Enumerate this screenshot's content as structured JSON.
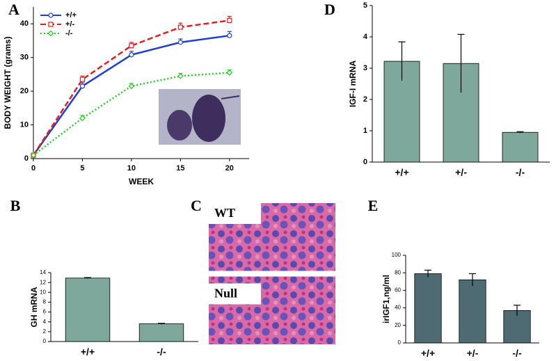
{
  "chart_data": [
    {
      "panel": "A",
      "type": "line",
      "x_label": "WEEK",
      "y_label": "BODY WEIGHT (grams)",
      "x": [
        0,
        5,
        10,
        15,
        20
      ],
      "xlim": [
        0,
        22
      ],
      "xticks": [
        0,
        5,
        10,
        15,
        20
      ],
      "ylim": [
        0,
        45
      ],
      "yticks": [
        0,
        10,
        20,
        30,
        40
      ],
      "legend": "upper left",
      "series": [
        {
          "name": "+/+",
          "color": "#1f3fd0",
          "marker": "circle",
          "dash": "solid",
          "values": [
            1,
            21.5,
            30.8,
            34.5,
            36.5
          ],
          "errors": [
            0.5,
            1,
            1,
            1,
            1.2
          ]
        },
        {
          "name": "+/-",
          "color": "#e02020",
          "marker": "square",
          "dash": "dashed",
          "values": [
            1,
            23.5,
            33.5,
            39,
            41
          ],
          "errors": [
            0.5,
            1,
            1,
            1.2,
            1.2
          ]
        },
        {
          "name": "-/-",
          "color": "#22cc22",
          "marker": "diamond",
          "dash": "dotted",
          "values": [
            1,
            12,
            21.5,
            24.5,
            25.5
          ],
          "errors": [
            0.5,
            0.8,
            0.8,
            0.8,
            0.8
          ]
        }
      ]
    },
    {
      "panel": "B",
      "type": "bar",
      "y_label": "GH mRNA",
      "categories": [
        "+/+",
        "-/-"
      ],
      "values": [
        12.9,
        3.6
      ],
      "errors": [
        0.1,
        0.1
      ],
      "color": "#7fa89c",
      "ylim": [
        0,
        14
      ],
      "yticks": [
        0,
        2,
        4,
        6,
        8,
        10,
        12,
        14
      ]
    },
    {
      "panel": "C",
      "type": "image",
      "labels": [
        "WT",
        "Null"
      ]
    },
    {
      "panel": "D",
      "type": "bar",
      "y_label": "IGF-I mRNA",
      "categories": [
        "+/+",
        "+/-",
        "-/-"
      ],
      "values": [
        3.22,
        3.15,
        0.95
      ],
      "errors": [
        0.62,
        0.93,
        0.02
      ],
      "color": "#7fa89c",
      "ylim": [
        0,
        5
      ],
      "yticks": [
        0,
        1,
        2,
        3,
        4,
        5
      ]
    },
    {
      "panel": "E",
      "type": "bar",
      "y_label": "irIGF1,ng/ml",
      "categories": [
        "+/+",
        "+/-",
        "-/-"
      ],
      "values": [
        79,
        72,
        37
      ],
      "errors": [
        4,
        7,
        6
      ],
      "color": "#4e6b73",
      "ylim": [
        0,
        100
      ],
      "yticks": [
        0,
        20,
        40,
        60,
        80,
        100
      ]
    }
  ]
}
